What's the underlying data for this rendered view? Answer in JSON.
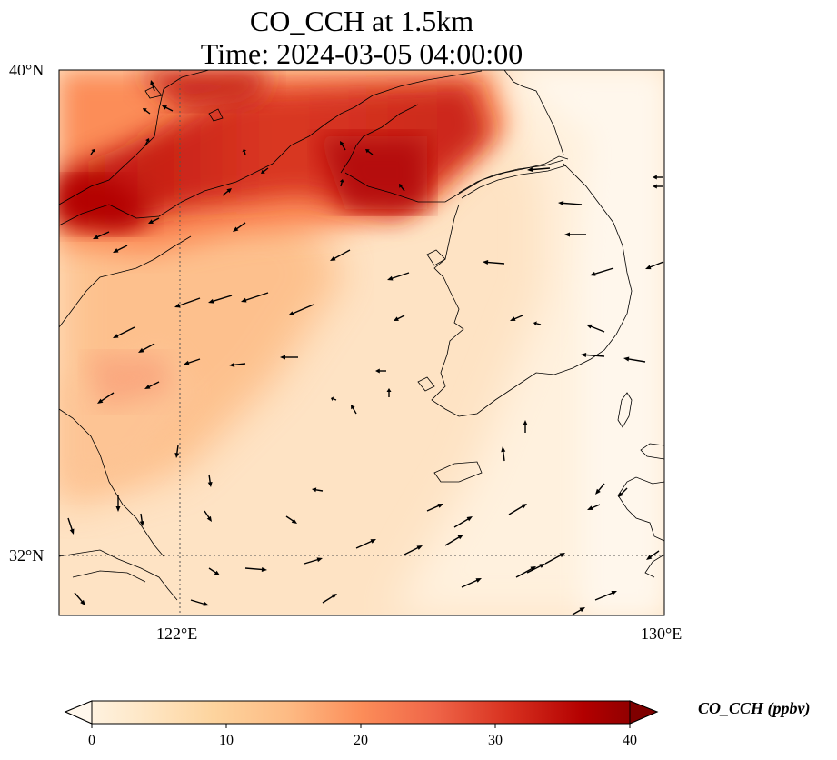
{
  "title": {
    "line1": "CO_CCH at 1.5km",
    "line2": "Time: 2024-03-05 04:00:00"
  },
  "axes": {
    "lat_ticks": [
      "40°N",
      "32°N"
    ],
    "lon_ticks": [
      "122°E",
      "130°E"
    ],
    "lat_range": [
      31,
      40
    ],
    "lon_range": [
      120,
      130
    ],
    "gridlines": "dotted at 122°E and 32°N"
  },
  "colorbar": {
    "label": "CO_CCH (ppbv)",
    "ticks": [
      "0",
      "10",
      "20",
      "30",
      "40"
    ],
    "range": [
      0,
      40
    ],
    "colormap": "OrRd",
    "extend": "both",
    "colors": [
      "#fff7ec",
      "#fee8c8",
      "#fdd49e",
      "#fdbb84",
      "#fc8d59",
      "#ef6548",
      "#d7301f",
      "#b30000",
      "#7f0000"
    ]
  },
  "field_description": {
    "high_band": "NW China coast to NE across Bohai/Yellow Sea, up to ~35 ppbv",
    "low": "Korean Peninsula, Japan, southern East China Sea 0-8 ppbv"
  },
  "wind_vectors": "black quiver arrows, mostly westerly flow from land"
}
